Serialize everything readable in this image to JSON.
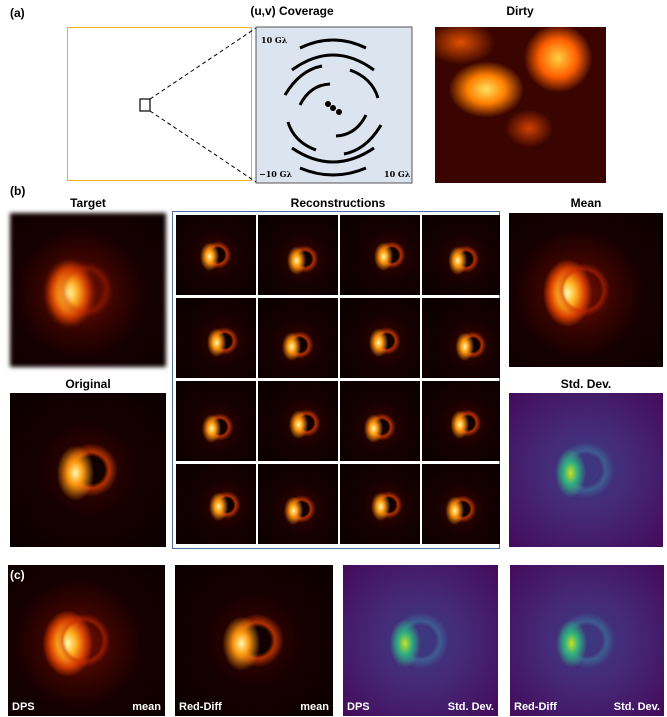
{
  "panel_a": {
    "label": "(a)",
    "coverage_title": "(u,v) Coverage",
    "dirty_title": "Dirty",
    "inset_labels": {
      "top_left": "10 Gλ",
      "bottom_left": "−10 Gλ",
      "bottom_right": "10 Gλ"
    }
  },
  "panel_b": {
    "label": "(b)",
    "target_title": "Target",
    "reconstructions_title": "Reconstructions",
    "mean_title": "Mean",
    "original_title": "Original",
    "std_title": "Std. Dev."
  },
  "panel_c": {
    "label": "(c)",
    "images": [
      {
        "method": "DPS",
        "stat": "mean"
      },
      {
        "method": "Red-Diff",
        "stat": "mean"
      },
      {
        "method": "DPS",
        "stat": "Std. Dev."
      },
      {
        "method": "Red-Diff",
        "stat": "Std. Dev."
      }
    ]
  }
}
